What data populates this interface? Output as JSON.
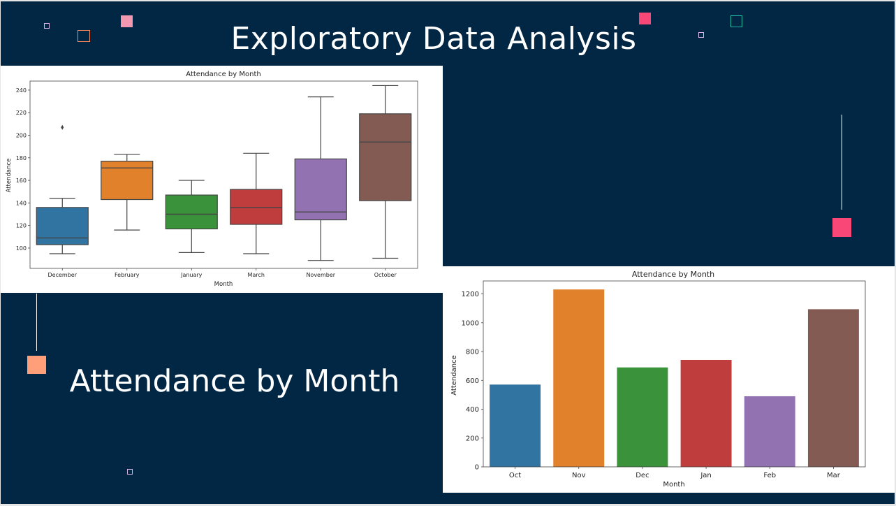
{
  "slide": {
    "title": "Exploratory Data Analysis",
    "subtitle": "Attendance by Month"
  },
  "colors": {
    "background": "#022745",
    "palette": [
      "#3274a1",
      "#e1812c",
      "#3a923a",
      "#c03d3e",
      "#9372b2",
      "#845b53"
    ],
    "deco_pink": "#f94877",
    "deco_light_pink": "#f497b1",
    "deco_orange": "#ff9f7a",
    "deco_teal": "#1fb8a5"
  },
  "chart_data": [
    {
      "type": "box",
      "title": "Attendance by Month",
      "xlabel": "Month",
      "ylabel": "Attendance",
      "ylim": [
        82,
        248
      ],
      "yticks": [
        100,
        120,
        140,
        160,
        180,
        200,
        220,
        240
      ],
      "categories": [
        "December",
        "February",
        "January",
        "March",
        "November",
        "October"
      ],
      "boxes": [
        {
          "min": 95,
          "q1": 103,
          "median": 109,
          "q3": 136,
          "max": 144,
          "outliers": [
            207
          ]
        },
        {
          "min": 116,
          "q1": 143,
          "median": 171,
          "q3": 177,
          "max": 183,
          "outliers": []
        },
        {
          "min": 96,
          "q1": 117,
          "median": 130,
          "q3": 147,
          "max": 160,
          "outliers": []
        },
        {
          "min": 95,
          "q1": 121,
          "median": 136,
          "q3": 152,
          "max": 184,
          "outliers": []
        },
        {
          "min": 89,
          "q1": 125,
          "median": 132,
          "q3": 179,
          "max": 234,
          "outliers": []
        },
        {
          "min": 91,
          "q1": 142,
          "median": 194,
          "q3": 219,
          "max": 244,
          "outliers": []
        }
      ]
    },
    {
      "type": "bar",
      "title": "Attendance by Month",
      "xlabel": "Month",
      "ylabel": "Attendance",
      "ylim": [
        0,
        1290
      ],
      "yticks": [
        0,
        200,
        400,
        600,
        800,
        1000,
        1200
      ],
      "categories": [
        "Oct",
        "Nov",
        "Dec",
        "Jan",
        "Feb",
        "Mar"
      ],
      "values": [
        571,
        1231,
        690,
        742,
        490,
        1094
      ]
    }
  ]
}
